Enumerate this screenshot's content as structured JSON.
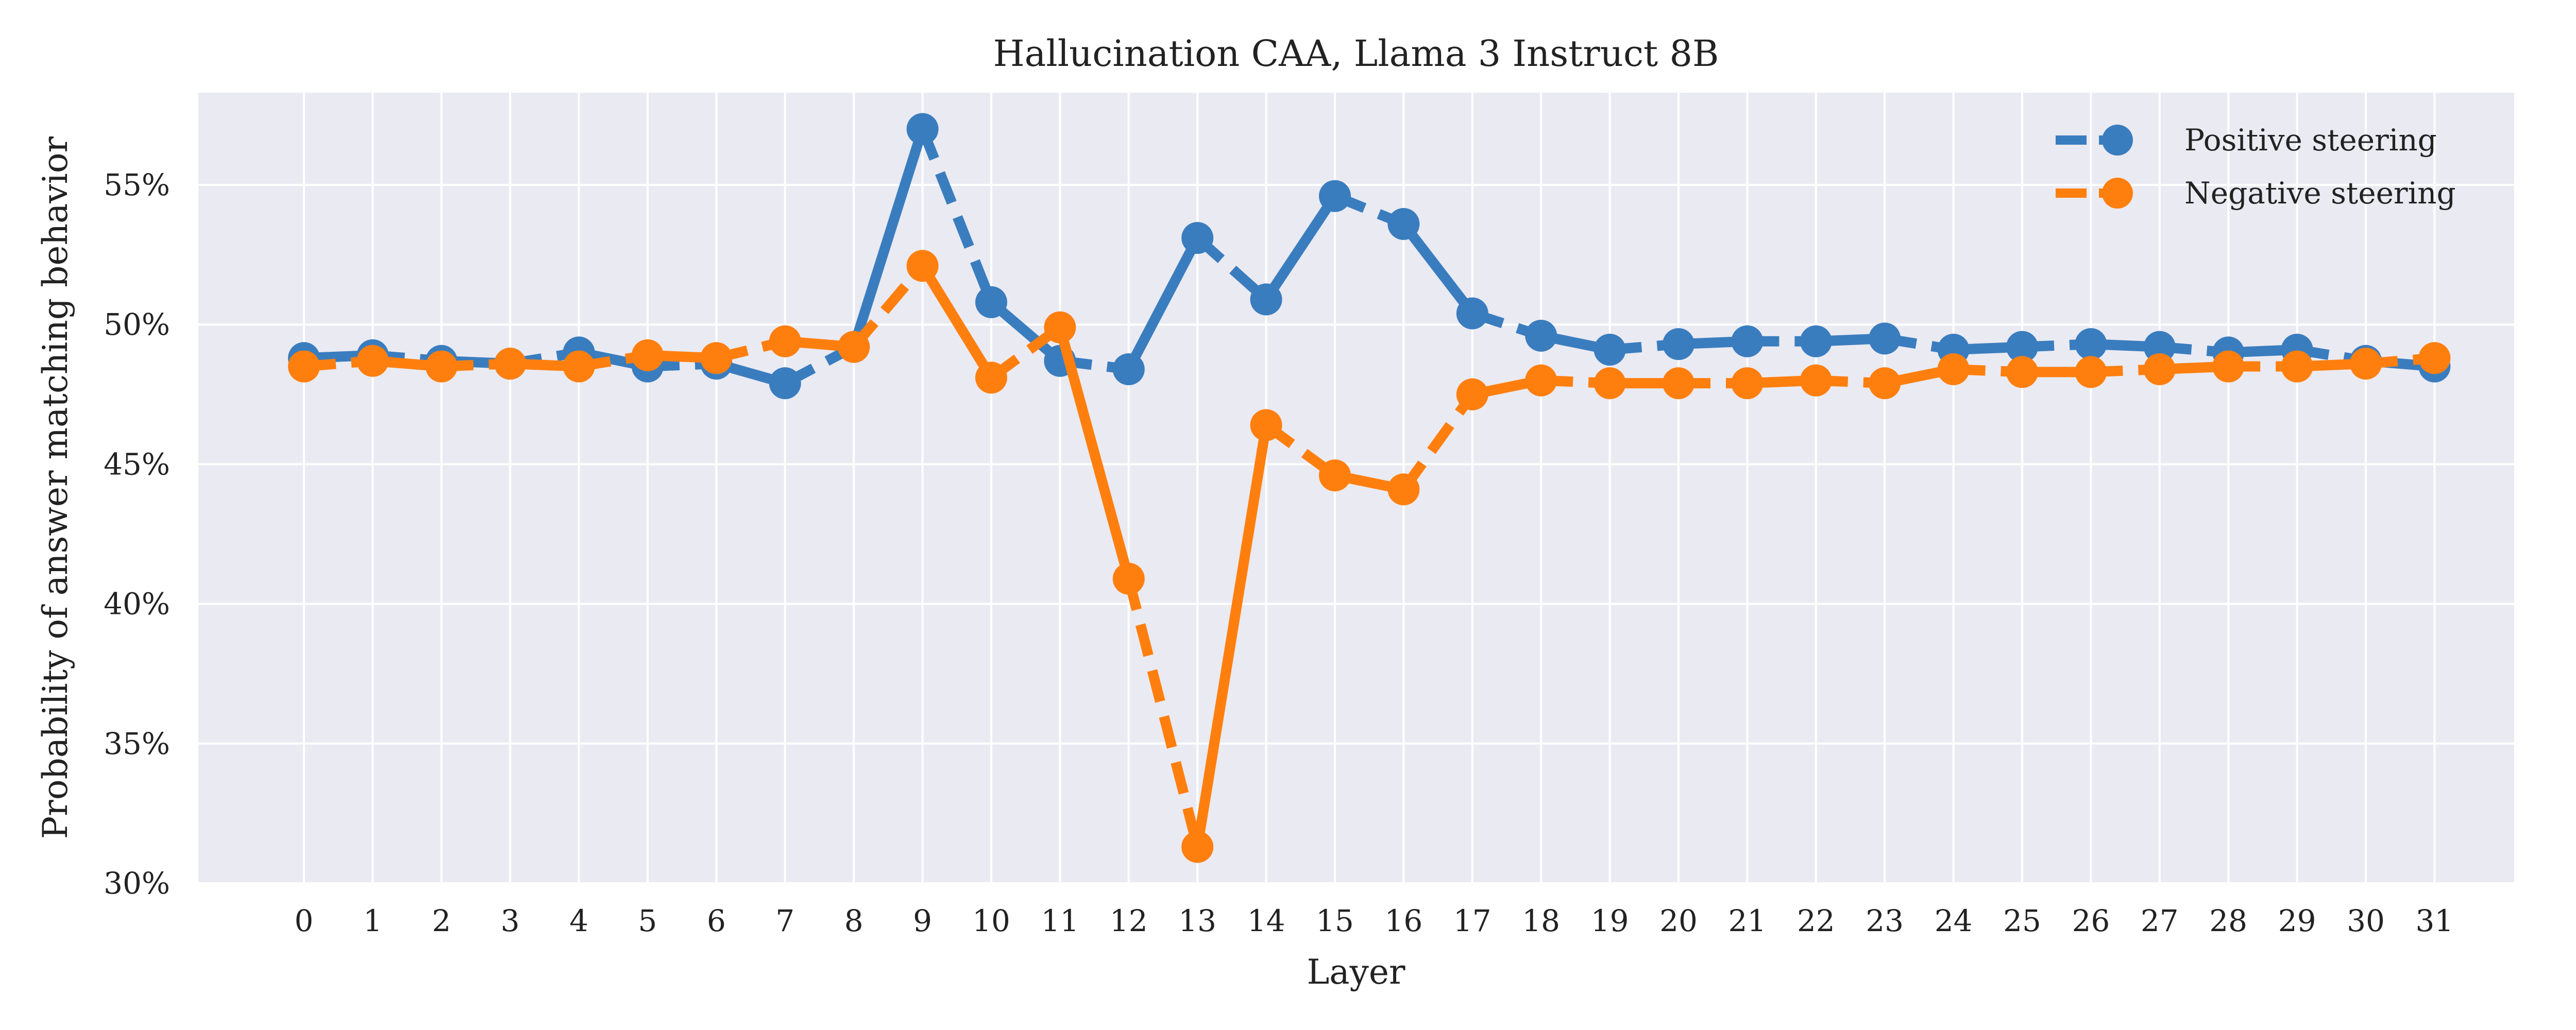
{
  "chart_data": {
    "type": "line",
    "title": "Hallucination CAA, Llama 3 Instruct 8B",
    "xlabel": "Layer",
    "ylabel": "Probability of answer matching behavior",
    "x": [
      0,
      1,
      2,
      3,
      4,
      5,
      6,
      7,
      8,
      9,
      10,
      11,
      12,
      13,
      14,
      15,
      16,
      17,
      18,
      19,
      20,
      21,
      22,
      23,
      24,
      25,
      26,
      27,
      28,
      29,
      30,
      31
    ],
    "xticks": [
      "0",
      "1",
      "2",
      "3",
      "4",
      "5",
      "6",
      "7",
      "8",
      "9",
      "10",
      "11",
      "12",
      "13",
      "14",
      "15",
      "16",
      "17",
      "18",
      "19",
      "20",
      "21",
      "22",
      "23",
      "24",
      "25",
      "26",
      "27",
      "28",
      "29",
      "30",
      "31"
    ],
    "ylim": [
      0.3,
      0.583
    ],
    "yticks": [
      0.3,
      0.35,
      0.4,
      0.45,
      0.5,
      0.55
    ],
    "ytick_labels": [
      "30%",
      "35%",
      "40%",
      "45%",
      "50%",
      "55%"
    ],
    "grid": true,
    "legend_position": "top-right",
    "series": [
      {
        "name": "Positive steering",
        "color": "#3a7dbf",
        "values": [
          0.488,
          0.489,
          0.487,
          0.486,
          0.49,
          0.485,
          0.486,
          0.479,
          0.492,
          0.57,
          0.508,
          0.487,
          0.484,
          0.531,
          0.509,
          0.546,
          0.536,
          0.504,
          0.496,
          0.491,
          0.493,
          0.494,
          0.494,
          0.495,
          0.491,
          0.492,
          0.493,
          0.492,
          0.49,
          0.491,
          0.487,
          0.485
        ]
      },
      {
        "name": "Negative steering",
        "color": "#ff7f0e",
        "values": [
          0.485,
          0.487,
          0.485,
          0.486,
          0.485,
          0.489,
          0.488,
          0.494,
          0.492,
          0.521,
          0.481,
          0.499,
          0.409,
          0.313,
          0.464,
          0.446,
          0.441,
          0.475,
          0.48,
          0.479,
          0.479,
          0.479,
          0.48,
          0.479,
          0.484,
          0.483,
          0.483,
          0.484,
          0.485,
          0.485,
          0.486,
          0.488
        ]
      }
    ]
  }
}
